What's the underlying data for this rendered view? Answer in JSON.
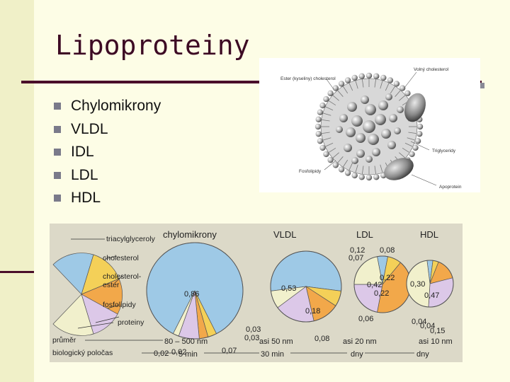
{
  "slide": {
    "title": "Lipoproteiny",
    "bullets": [
      "Chylomikrony",
      "VLDL",
      "IDL",
      "LDL",
      "HDL"
    ]
  },
  "structure_figure": {
    "labels": {
      "ester": "Ester (kyseliny) cholesterol",
      "free_chol": "Volný cholesterol",
      "triglycerides": "Triglyceridy",
      "phospholipids": "Fosfolipidy",
      "apoprotein": "Apoprotein"
    }
  },
  "composition_figure": {
    "legend": {
      "triacylglycerols": "triacylglyceroly",
      "cholesterol": "cholesterol",
      "cholesterol_ester_line1": "cholesterol-",
      "cholesterol_ester_line2": "ester",
      "phospholipids": "fosfolipidy",
      "proteins": "proteiny"
    },
    "column_titles": {
      "chylomikrony": "chylomikrony",
      "vldl": "VLDL",
      "ldl": "LDL",
      "hdl": "HDL"
    },
    "row_labels": {
      "diameter": "průměr",
      "half_life": "biologický poločas"
    },
    "diameters": {
      "chylomikrony": "80 – 500 nm",
      "vldl": "asi 50 nm",
      "ldl": "asi 20 nm",
      "hdl": "asi 10 nm"
    },
    "half_lives": {
      "chylomikrony": "5 min",
      "vldl": "30 min",
      "ldl": "dny",
      "hdl": "dny"
    },
    "colors": {
      "triacylglycerols": "#9ec9e6",
      "cholesterol": "#f4d058",
      "cholesterol_ester": "#f2a84a",
      "phospholipids": "#dcc8e8",
      "proteins": "#f1f0cc"
    }
  },
  "chart_data": {
    "type": "pie",
    "component_order": [
      "triacylglyceroly",
      "cholesterol",
      "cholesterol-ester",
      "fosfolipidy",
      "proteiny"
    ],
    "pies": [
      {
        "name": "chylomikrony",
        "values": [
          0.86,
          0.03,
          0.03,
          0.07,
          0.02
        ],
        "labels": [
          "0,86",
          "0,03",
          "0,03",
          "0,07",
          "0,02"
        ],
        "extra_label": "0,02"
      },
      {
        "name": "VLDL",
        "values": [
          0.53,
          0.07,
          0.12,
          0.18,
          0.08
        ],
        "labels": [
          "0,53",
          "0,07",
          "0,12",
          "0,18",
          "0,08"
        ]
      },
      {
        "name": "LDL",
        "values": [
          0.06,
          0.08,
          0.42,
          0.22,
          0.22
        ],
        "labels": [
          "0,06",
          "0,08",
          "0,42",
          "0,22",
          "0,22"
        ]
      },
      {
        "name": "HDL",
        "values": [
          0.04,
          0.04,
          0.15,
          0.3,
          0.47
        ],
        "labels": [
          "0,04",
          "0,04",
          "0,15",
          "0,30",
          "0,47"
        ]
      }
    ]
  }
}
